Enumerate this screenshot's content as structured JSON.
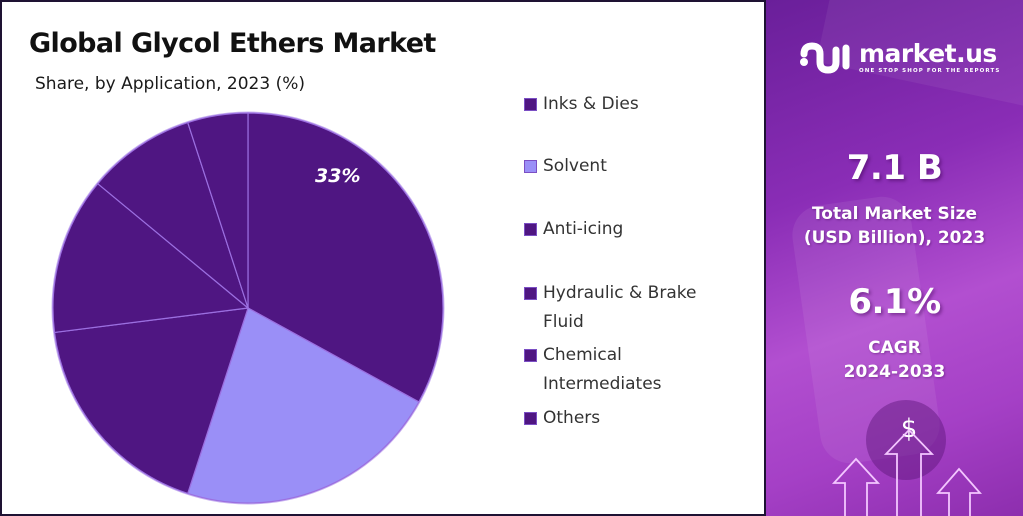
{
  "header": {
    "title": "Global Glycol Ethers Market",
    "subtitle": "Share, by Application, 2023 (%)"
  },
  "pie": {
    "highlight_label": "33%"
  },
  "legend": {
    "items": [
      {
        "label": "Inks & Dies",
        "color": "#4f1682"
      },
      {
        "label": "Solvent",
        "color": "#9a8ff7"
      },
      {
        "label": "Anti-icing",
        "color": "#4f1682"
      },
      {
        "label": "Hydraulic & Brake Fluid",
        "color": "#4f1682"
      },
      {
        "label": "Chemical Intermediates",
        "color": "#4f1682"
      },
      {
        "label": "Others",
        "color": "#4f1682"
      }
    ]
  },
  "brand": {
    "name": "market.us",
    "tagline": "ONE STOP SHOP FOR THE REPORTS",
    "icon": "market-us-logo-icon"
  },
  "stats": {
    "market_size_value": "7.1 B",
    "market_size_label_line1": "Total Market Size",
    "market_size_label_line2": "(USD Billion), 2023",
    "cagr_value": "6.1%",
    "cagr_label_line1": "CAGR",
    "cagr_label_line2": "2024-2033"
  },
  "decor": {
    "icons": [
      "dollar-icon",
      "growth-arrow-icon"
    ],
    "dollar_symbol": "$"
  },
  "colors": {
    "dark_slice": "#4f1682",
    "light_slice": "#9a8ff7",
    "slice_border": "#9b6fe0",
    "panel_gradient_start": "#6a1f9a",
    "panel_gradient_end": "#b24fd0"
  },
  "chart_data": {
    "type": "pie",
    "title": "Global Glycol Ethers Market",
    "subtitle": "Share, by Application, 2023 (%)",
    "categories": [
      "Inks & Dies",
      "Solvent",
      "Anti-icing",
      "Hydraulic & Brake Fluid",
      "Chemical Intermediates",
      "Others"
    ],
    "values": [
      33,
      22,
      18,
      13,
      9,
      5
    ],
    "labeled_values": {
      "Inks & Dies": 33
    },
    "start_angle_deg": 0,
    "direction": "clockwise",
    "legend_position": "right",
    "colors": [
      "#4f1682",
      "#9a8ff7",
      "#4f1682",
      "#4f1682",
      "#4f1682",
      "#4f1682"
    ]
  }
}
